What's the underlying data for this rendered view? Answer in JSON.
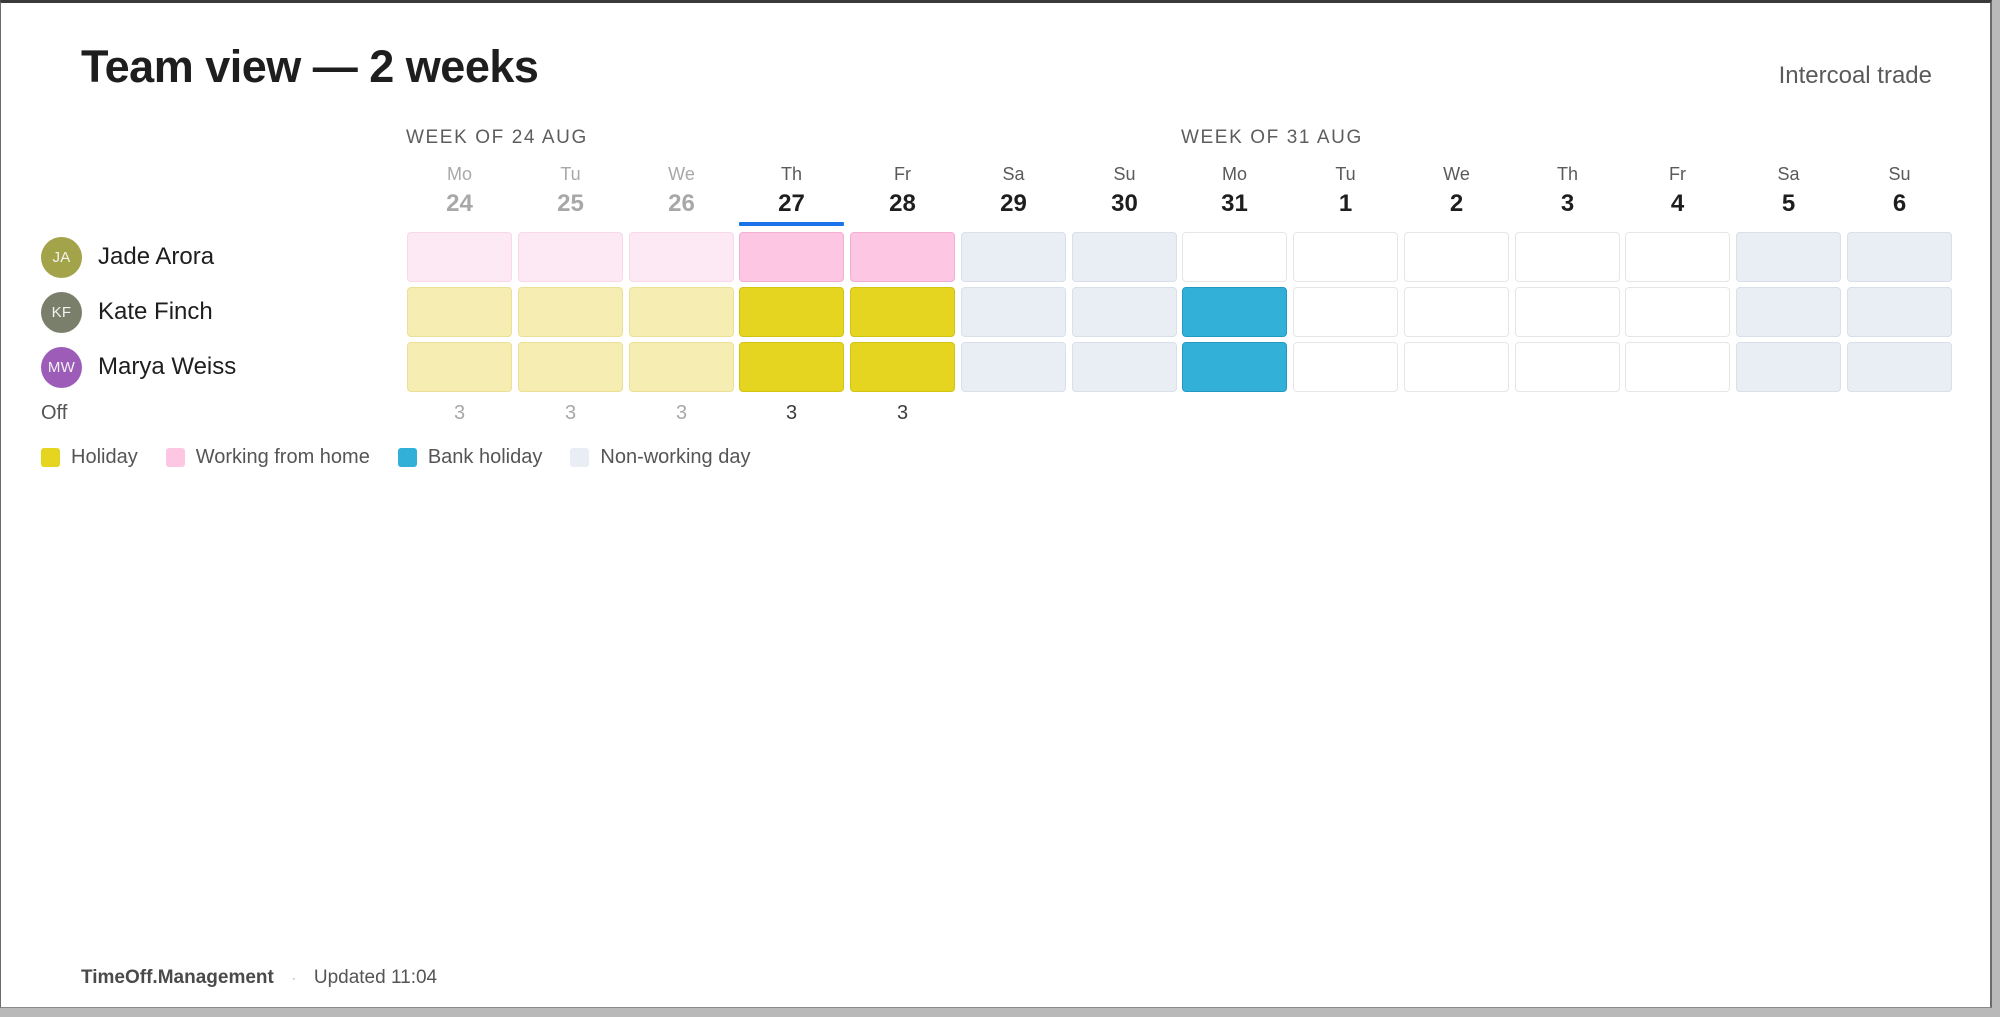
{
  "header": {
    "title": "Team view — 2 weeks",
    "company": "Intercoal trade"
  },
  "weeks": [
    {
      "label": "WEEK OF 24 AUG"
    },
    {
      "label": "WEEK OF 31 AUG"
    }
  ],
  "days": [
    {
      "dow": "Mo",
      "num": "24",
      "state": "past"
    },
    {
      "dow": "Tu",
      "num": "25",
      "state": "past"
    },
    {
      "dow": "We",
      "num": "26",
      "state": "past"
    },
    {
      "dow": "Th",
      "num": "27",
      "state": "today"
    },
    {
      "dow": "Fr",
      "num": "28",
      "state": ""
    },
    {
      "dow": "Sa",
      "num": "29",
      "state": ""
    },
    {
      "dow": "Su",
      "num": "30",
      "state": ""
    },
    {
      "dow": "Mo",
      "num": "31",
      "state": ""
    },
    {
      "dow": "Tu",
      "num": "1",
      "state": ""
    },
    {
      "dow": "We",
      "num": "2",
      "state": ""
    },
    {
      "dow": "Th",
      "num": "3",
      "state": ""
    },
    {
      "dow": "Fr",
      "num": "4",
      "state": ""
    },
    {
      "dow": "Sa",
      "num": "5",
      "state": ""
    },
    {
      "dow": "Su",
      "num": "6",
      "state": ""
    }
  ],
  "people": [
    {
      "initials": "JA",
      "name": "Jade Arora",
      "avatar_color": "#a3a449",
      "cells": [
        "wfh",
        "wfh",
        "wfh",
        "wfh",
        "wfh",
        "nw",
        "nw",
        "",
        "",
        "",
        "",
        "",
        "nw",
        "nw"
      ]
    },
    {
      "initials": "KF",
      "name": "Kate Finch",
      "avatar_color": "#7a7f6b",
      "cells": [
        "hol",
        "hol",
        "hol",
        "hol",
        "hol",
        "nw",
        "nw",
        "bank",
        "",
        "",
        "",
        "",
        "nw",
        "nw"
      ]
    },
    {
      "initials": "MW",
      "name": "Marya Weiss",
      "avatar_color": "#9c5cb8",
      "cells": [
        "hol",
        "hol",
        "hol",
        "hol",
        "hol",
        "nw",
        "nw",
        "bank",
        "",
        "",
        "",
        "",
        "nw",
        "nw"
      ]
    }
  ],
  "off_row": {
    "label": "Off",
    "counts": [
      "3",
      "3",
      "3",
      "3",
      "3",
      "",
      "",
      "",
      "",
      "",
      "",
      "",
      "",
      ""
    ]
  },
  "legend": [
    {
      "key": "hol",
      "label": "Holiday",
      "color": "#e6d520"
    },
    {
      "key": "wfh",
      "label": "Working from home",
      "color": "#fdc7e3"
    },
    {
      "key": "bank",
      "label": "Bank holiday",
      "color": "#33b0d8"
    },
    {
      "key": "nw",
      "label": "Non-working day",
      "color": "#e9eef5"
    }
  ],
  "footer": {
    "brand": "TimeOff.Management",
    "separator": "·",
    "updated": "Updated 11:04"
  }
}
